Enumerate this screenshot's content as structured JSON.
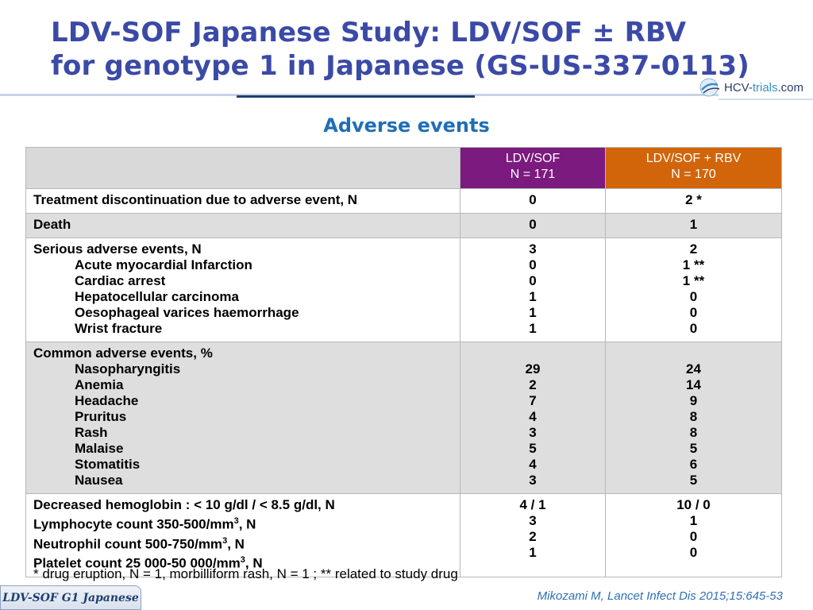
{
  "slide": {
    "title_line1": "LDV-SOF Japanese Study: LDV/SOF ± RBV",
    "title_line2": "for genotype 1 in Japanese (GS-US-337-0113)",
    "subtitle": "Adverse events",
    "logo": {
      "text_main": "HCV-",
      "text_accent": "trials",
      "text_suffix": ".com",
      "icon": "hcv-trials-logo-icon"
    },
    "footnote": "* drug eruption, N = 1, morbilliform rash, N = 1 ; **  related to study drug",
    "tag": "LDV-SOF G1 Japanese",
    "citation": "Mikozami M, Lancet Infect Dis 2015;15:645-53",
    "colors": {
      "title": "#3b4aa6",
      "subtitle": "#1f6fb5",
      "arm_a": "#7b1a7f",
      "arm_b": "#d2650a",
      "row_shade": "#dedede"
    }
  },
  "table": {
    "headers": [
      {
        "line1": "LDV/SOF",
        "line2": "N = 171"
      },
      {
        "line1": "LDV/SOF + RBV",
        "line2": "N = 170"
      }
    ],
    "rows": [
      {
        "shade": "white",
        "labels": [
          "Treatment discontinuation due to adverse event, N"
        ],
        "col_a": [
          "0"
        ],
        "col_b": [
          "2 *"
        ]
      },
      {
        "shade": "gray",
        "labels": [
          "Death"
        ],
        "col_a": [
          "0"
        ],
        "col_b": [
          "1"
        ]
      },
      {
        "shade": "white",
        "labels": [
          "Serious adverse events, N",
          "Acute myocardial Infarction",
          "Cardiac arrest",
          "Hepatocellular carcinoma",
          "Oesophageal varices haemorrhage",
          "Wrist fracture"
        ],
        "col_a": [
          "3",
          "0",
          "0",
          "1",
          "1",
          "1"
        ],
        "col_b": [
          "2",
          "1 **",
          "1 **",
          "0",
          "0",
          "0"
        ]
      },
      {
        "shade": "gray",
        "labels": [
          "Common adverse events, %",
          "Nasopharyngitis",
          "Anemia",
          "Headache",
          "Pruritus",
          "Rash",
          "Malaise",
          "Stomatitis",
          "Nausea"
        ],
        "col_a": [
          "",
          "29",
          "2",
          "7",
          "4",
          "3",
          "5",
          "4",
          "3"
        ],
        "col_b": [
          "",
          "24",
          "14",
          "9",
          "8",
          "8",
          "5",
          "6",
          "5"
        ]
      },
      {
        "shade": "white",
        "labels_rich": [
          {
            "text": "Decreased hemoglobin : < 10 g/dl / < 8.5 g/dl, N",
            "sup": "",
            "after": ""
          },
          {
            "text": "Lymphocyte count 350-500/mm",
            "sup": "3",
            "after": ", N"
          },
          {
            "text": "Neutrophil count 500-750/mm",
            "sup": "3",
            "after": ", N"
          },
          {
            "text": "Platelet count 25 000-50 000/mm",
            "sup": "3",
            "after": ", N"
          }
        ],
        "col_a": [
          "4 / 1",
          "3",
          "2",
          "1"
        ],
        "col_b": [
          "10 / 0",
          "1",
          "0",
          "0"
        ]
      }
    ]
  }
}
